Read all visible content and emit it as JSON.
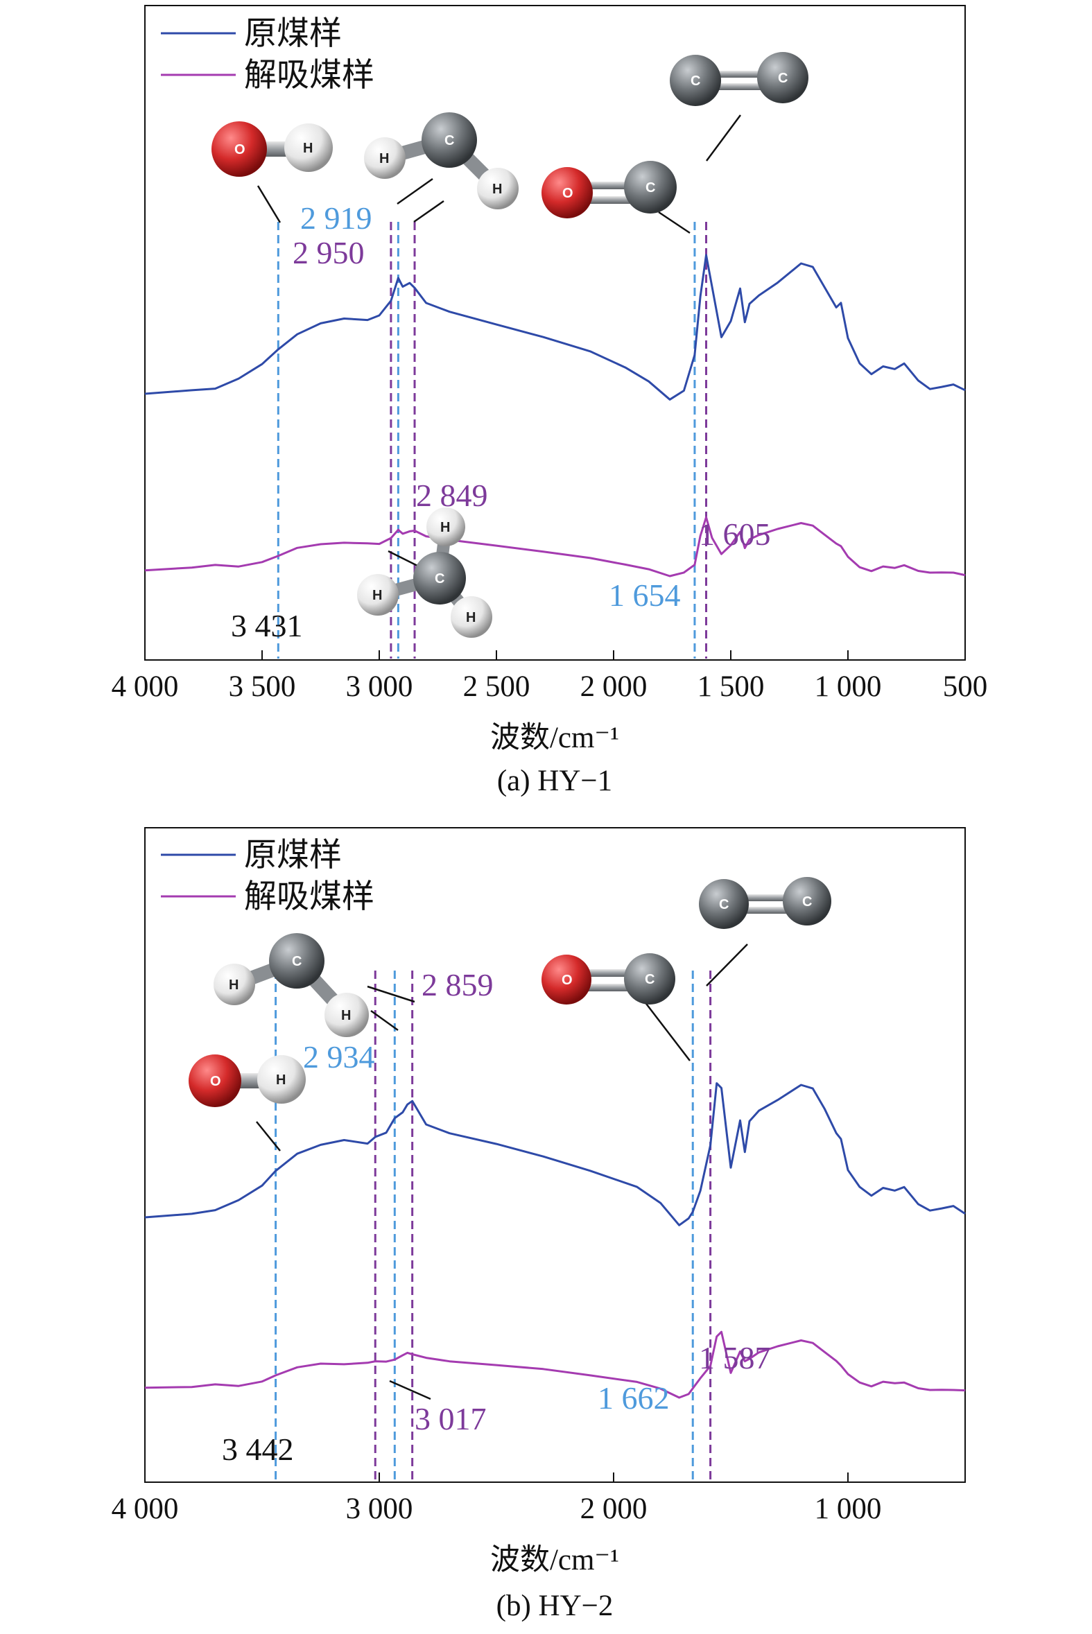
{
  "colors": {
    "blue_series": "#2E4AA8",
    "purple_series": "#A43BB0",
    "blue_annotation": "#4E9ADC",
    "purple_annotation": "#7D3A9A",
    "black": "#111111",
    "oxygen_red": "#D42A2A",
    "carbon_gray": "#6F7478",
    "hydrogen_white": "#F2F2F2"
  },
  "chart_data": [
    {
      "type": "line",
      "caption": "(a) HY−1",
      "xlabel": "波数/cm⁻¹",
      "xlim": [
        4000,
        500
      ],
      "x_reversed": true,
      "xticks": [
        4000,
        3500,
        3000,
        2500,
        2000,
        1500,
        1000,
        500
      ],
      "xtick_labels": [
        "4 000",
        "3 500",
        "3 000",
        "2 500",
        "2 000",
        "1 500",
        "1 000",
        "500"
      ],
      "legend": {
        "position": "top-left",
        "entries": [
          "原煤样",
          "解吸煤样"
        ]
      },
      "series": [
        {
          "name": "原煤样",
          "x": [
            4000,
            3800,
            3700,
            3600,
            3500,
            3431,
            3350,
            3250,
            3150,
            3050,
            3000,
            2950,
            2919,
            2900,
            2870,
            2849,
            2800,
            2700,
            2500,
            2300,
            2100,
            1950,
            1850,
            1760,
            1700,
            1654,
            1630,
            1605,
            1580,
            1540,
            1500,
            1460,
            1440,
            1420,
            1380,
            1300,
            1200,
            1150,
            1100,
            1050,
            1030,
            1000,
            950,
            900,
            850,
            800,
            760,
            700,
            650,
            600,
            550,
            500
          ],
          "y": [
            0.09,
            0.11,
            0.12,
            0.17,
            0.24,
            0.31,
            0.38,
            0.43,
            0.45,
            0.44,
            0.46,
            0.53,
            0.64,
            0.6,
            0.62,
            0.6,
            0.53,
            0.49,
            0.43,
            0.37,
            0.3,
            0.22,
            0.15,
            0.06,
            0.1,
            0.27,
            0.55,
            0.75,
            0.6,
            0.36,
            0.44,
            0.6,
            0.44,
            0.53,
            0.57,
            0.63,
            0.72,
            0.7,
            0.6,
            0.5,
            0.52,
            0.35,
            0.23,
            0.18,
            0.22,
            0.21,
            0.24,
            0.16,
            0.12,
            0.13,
            0.14,
            0.11
          ]
        },
        {
          "name": "解吸煤样",
          "x": [
            4000,
            3800,
            3700,
            3600,
            3500,
            3431,
            3350,
            3250,
            3150,
            3050,
            3000,
            2950,
            2919,
            2900,
            2870,
            2849,
            2800,
            2700,
            2500,
            2300,
            2100,
            1950,
            1850,
            1760,
            1700,
            1654,
            1630,
            1605,
            1580,
            1540,
            1500,
            1460,
            1440,
            1420,
            1380,
            1300,
            1200,
            1150,
            1100,
            1050,
            1030,
            1000,
            950,
            900,
            850,
            800,
            760,
            700,
            650,
            600,
            550,
            500
          ],
          "y": [
            -0.18,
            -0.17,
            -0.16,
            -0.17,
            -0.15,
            -0.12,
            -0.08,
            -0.06,
            -0.05,
            -0.05,
            -0.05,
            -0.02,
            0.02,
            0.0,
            0.01,
            0.01,
            -0.02,
            -0.04,
            -0.07,
            -0.1,
            -0.13,
            -0.16,
            -0.18,
            -0.21,
            -0.19,
            -0.15,
            -0.01,
            0.08,
            -0.02,
            -0.1,
            -0.06,
            0.0,
            -0.08,
            -0.04,
            -0.02,
            0.01,
            0.04,
            0.03,
            -0.01,
            -0.05,
            -0.06,
            -0.11,
            -0.16,
            -0.18,
            -0.16,
            -0.17,
            -0.16,
            -0.19,
            -0.2,
            -0.2,
            -0.2,
            -0.21
          ]
        }
      ],
      "annotations": [
        {
          "label": "3 431",
          "x": 3431,
          "color": "black",
          "line_color": "blue"
        },
        {
          "label": "2 919",
          "x": 2919,
          "color": "blue",
          "line_color": "blue"
        },
        {
          "label": "2 950",
          "x": 2950,
          "color": "purple",
          "line_color": "purple"
        },
        {
          "label": "2 849",
          "x": 2849,
          "color": "purple",
          "line_color": "purple"
        },
        {
          "label": "1 654",
          "x": 1654,
          "color": "blue",
          "line_color": "blue"
        },
        {
          "label": "1 605",
          "x": 1605,
          "color": "purple",
          "line_color": "purple"
        }
      ],
      "molecule_labels": {
        "oxygen": "O",
        "hydrogen": "H",
        "carbon": "C"
      }
    },
    {
      "type": "line",
      "caption": "(b) HY−2",
      "xlabel": "波数/cm⁻¹",
      "xlim": [
        4000,
        500
      ],
      "x_reversed": true,
      "xticks": [
        4000,
        3000,
        2000,
        1000
      ],
      "xtick_labels": [
        "4 000",
        "3 000",
        "2 000",
        "1 000"
      ],
      "legend": {
        "position": "top-left",
        "entries": [
          "原煤样",
          "解吸煤样"
        ]
      },
      "series": [
        {
          "name": "原煤样",
          "x": [
            4000,
            3800,
            3700,
            3600,
            3500,
            3442,
            3350,
            3250,
            3150,
            3050,
            3017,
            2970,
            2934,
            2900,
            2880,
            2859,
            2800,
            2700,
            2500,
            2300,
            2100,
            1900,
            1800,
            1720,
            1680,
            1662,
            1630,
            1587,
            1560,
            1540,
            1500,
            1460,
            1440,
            1420,
            1380,
            1300,
            1200,
            1150,
            1100,
            1050,
            1030,
            1000,
            950,
            900,
            850,
            800,
            760,
            700,
            650,
            600,
            550,
            500
          ],
          "y": [
            0.08,
            0.1,
            0.12,
            0.17,
            0.24,
            0.31,
            0.39,
            0.43,
            0.45,
            0.43,
            0.46,
            0.48,
            0.55,
            0.58,
            0.62,
            0.64,
            0.53,
            0.49,
            0.44,
            0.38,
            0.31,
            0.23,
            0.15,
            0.04,
            0.07,
            0.1,
            0.2,
            0.42,
            0.72,
            0.7,
            0.32,
            0.55,
            0.4,
            0.55,
            0.6,
            0.65,
            0.72,
            0.7,
            0.6,
            0.48,
            0.45,
            0.3,
            0.22,
            0.18,
            0.22,
            0.21,
            0.23,
            0.15,
            0.12,
            0.13,
            0.14,
            0.1
          ]
        },
        {
          "name": "解吸煤样",
          "x": [
            4000,
            3800,
            3700,
            3600,
            3500,
            3442,
            3350,
            3250,
            3150,
            3050,
            3017,
            2970,
            2934,
            2900,
            2880,
            2859,
            2800,
            2700,
            2500,
            2300,
            2100,
            1900,
            1800,
            1720,
            1680,
            1662,
            1630,
            1587,
            1560,
            1540,
            1500,
            1460,
            1440,
            1420,
            1380,
            1300,
            1200,
            1150,
            1100,
            1050,
            1030,
            1000,
            950,
            900,
            850,
            800,
            760,
            700,
            650,
            600,
            550,
            500
          ],
          "y": [
            -0.17,
            -0.17,
            -0.16,
            -0.17,
            -0.15,
            -0.12,
            -0.08,
            -0.06,
            -0.06,
            -0.05,
            -0.04,
            -0.04,
            -0.03,
            -0.01,
            0.0,
            -0.01,
            -0.03,
            -0.05,
            -0.07,
            -0.09,
            -0.12,
            -0.15,
            -0.18,
            -0.22,
            -0.2,
            -0.17,
            -0.12,
            -0.06,
            0.08,
            0.1,
            -0.1,
            0.0,
            -0.05,
            -0.04,
            -0.01,
            0.02,
            0.05,
            0.04,
            0.0,
            -0.04,
            -0.06,
            -0.1,
            -0.14,
            -0.16,
            -0.14,
            -0.15,
            -0.15,
            -0.18,
            -0.19,
            -0.19,
            -0.19,
            -0.19
          ]
        }
      ],
      "annotations": [
        {
          "label": "3 442",
          "x": 3442,
          "color": "black",
          "line_color": "blue"
        },
        {
          "label": "2 934",
          "x": 2934,
          "color": "blue",
          "line_color": "blue"
        },
        {
          "label": "2 859",
          "x": 2859,
          "color": "purple",
          "line_color": "purple"
        },
        {
          "label": "3 017",
          "x": 3017,
          "color": "purple",
          "line_color": "purple"
        },
        {
          "label": "1 662",
          "x": 1662,
          "color": "blue",
          "line_color": "blue"
        },
        {
          "label": "1 587",
          "x": 1587,
          "color": "purple",
          "line_color": "purple"
        }
      ],
      "molecule_labels": {
        "oxygen": "O",
        "hydrogen": "H",
        "carbon": "C"
      }
    }
  ]
}
